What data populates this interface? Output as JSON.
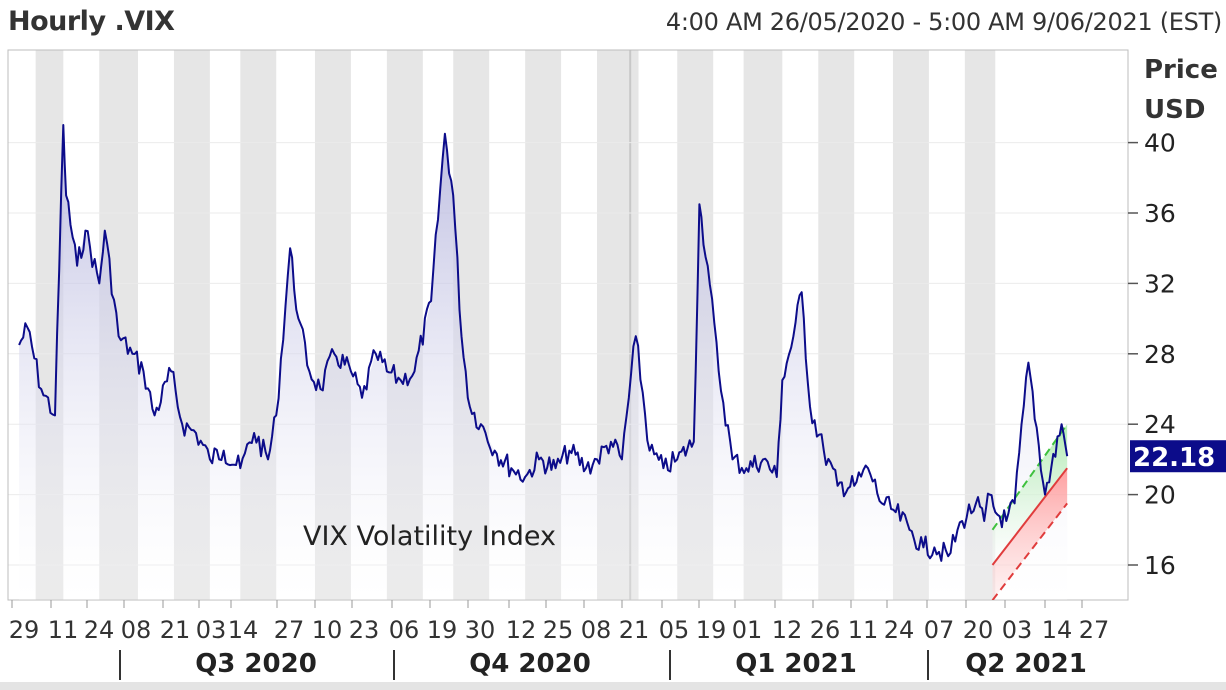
{
  "header": {
    "title": "Hourly .VIX",
    "range": "4:00 AM 26/05/2020 - 5:00 AM 9/06/2021 (EST)"
  },
  "chart_data": {
    "type": "area",
    "title": "Hourly .VIX",
    "annotation": "VIX Volatility Index",
    "ylabel": "Price USD",
    "ylabel_lines": [
      "Price",
      "USD"
    ],
    "ylim": [
      14,
      44
    ],
    "yticks": [
      16,
      20,
      24,
      28,
      32,
      36,
      40
    ],
    "last_value": "22.18",
    "x_tick_labels": [
      "29",
      "11",
      "24",
      "08",
      "21",
      "03",
      "14",
      "27",
      "10",
      "23",
      "06",
      "19",
      "30",
      "12",
      "25",
      "08",
      "21",
      "05",
      "19",
      "01",
      "12",
      "26",
      "11",
      "24",
      "07",
      "20",
      "03",
      "14",
      "27"
    ],
    "quarters": [
      "Q3 2020",
      "Q4 2020",
      "Q1 2021",
      "Q2 2021"
    ],
    "series": [
      {
        "x": [
          "2020-05-26",
          "2020-05-29",
          "2020-06-03",
          "2020-06-08",
          "2020-06-11",
          "2020-06-12",
          "2020-06-16",
          "2020-06-19",
          "2020-06-24",
          "2020-06-26",
          "2020-07-01",
          "2020-07-06",
          "2020-07-10",
          "2020-07-14",
          "2020-07-20",
          "2020-07-24",
          "2020-07-29",
          "2020-08-03",
          "2020-08-08",
          "2020-08-14",
          "2020-08-19",
          "2020-08-24",
          "2020-08-27",
          "2020-09-01",
          "2020-09-04",
          "2020-09-08",
          "2020-09-12",
          "2020-09-17",
          "2020-09-23",
          "2020-09-27",
          "2020-10-02",
          "2020-10-06",
          "2020-10-11",
          "2020-10-16",
          "2020-10-22",
          "2020-10-27",
          "2020-10-30",
          "2020-11-02",
          "2020-11-05",
          "2020-11-09",
          "2020-11-14",
          "2020-11-20",
          "2020-11-25",
          "2020-11-30",
          "2020-12-06",
          "2020-12-11",
          "2020-12-17",
          "2020-12-21",
          "2020-12-26",
          "2020-12-30",
          "2021-01-04",
          "2021-01-09",
          "2021-01-14",
          "2021-01-19",
          "2021-01-25",
          "2021-01-27",
          "2021-01-30",
          "2021-02-03",
          "2021-02-08",
          "2021-02-13",
          "2021-02-19",
          "2021-02-24",
          "2021-02-26",
          "2021-03-02",
          "2021-03-05",
          "2021-03-08",
          "2021-03-13",
          "2021-03-18",
          "2021-03-24",
          "2021-03-29",
          "2021-04-03",
          "2021-04-08",
          "2021-04-13",
          "2021-04-18",
          "2021-04-22",
          "2021-04-27",
          "2021-05-02",
          "2021-05-07",
          "2021-05-10",
          "2021-05-12",
          "2021-05-14",
          "2021-05-18",
          "2021-05-21",
          "2021-05-26",
          "2021-06-01",
          "2021-06-07",
          "2021-06-09"
        ],
        "y": [
          28.5,
          29.5,
          26,
          24.5,
          41,
          37,
          33,
          35,
          32,
          35,
          29,
          28,
          27,
          24.5,
          27,
          24,
          23.5,
          22,
          22.5,
          21.5,
          23.5,
          22,
          24.5,
          34,
          30,
          27,
          26,
          28,
          27,
          25.5,
          28,
          27,
          26.5,
          27,
          31,
          40.5,
          37,
          29,
          25,
          24,
          22.5,
          21.5,
          21,
          22,
          21.5,
          22.5,
          21.5,
          22,
          23,
          22,
          29,
          22.5,
          21.5,
          22,
          23,
          36.5,
          33,
          27,
          22,
          21.5,
          22,
          21,
          26.5,
          29,
          31.5,
          25,
          22.5,
          20.5,
          20.5,
          21.5,
          19.5,
          19,
          18,
          17,
          17,
          16.5,
          18.5,
          19.5,
          18.5,
          20,
          19,
          18.5,
          19.5,
          27.5,
          20,
          24,
          22.18
        ]
      }
    ],
    "channel": {
      "upper": [
        [
          "2021-05-13",
          18
        ],
        [
          "2021-06-09",
          24
        ]
      ],
      "middle": [
        [
          "2021-05-13",
          16
        ],
        [
          "2021-06-09",
          21.5
        ]
      ],
      "lower": [
        [
          "2021-05-13",
          14
        ],
        [
          "2021-06-09",
          19.5
        ]
      ]
    },
    "grid": true,
    "colors": {
      "line": "#0c0c8a",
      "fill_top": "#b6b6dc",
      "band_alt": "#e6e6e6",
      "channel_up": "#3ec13e",
      "channel_down": "#e03c3c",
      "label_box": "#0c0c8a"
    }
  }
}
